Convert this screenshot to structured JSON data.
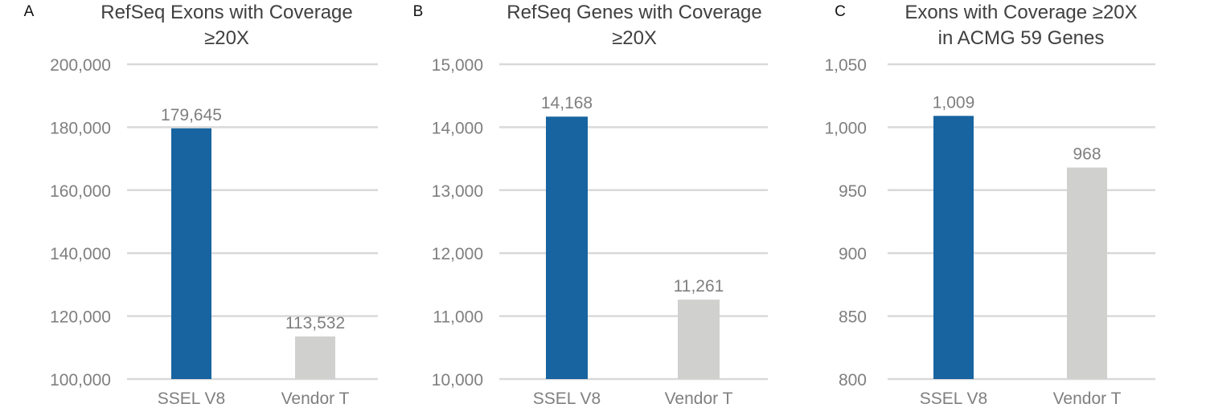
{
  "chart_data": [
    {
      "panel_letter": "A",
      "type": "bar",
      "title": [
        "RefSeq Exons with Coverage",
        "≥20X"
      ],
      "categories": [
        "SSEL V8",
        "Vendor T"
      ],
      "values": [
        179645,
        113532
      ],
      "value_labels": [
        "179,645",
        "113,532"
      ],
      "colors": [
        "#1864a0",
        "#d0d0ce"
      ],
      "ylim": [
        100000,
        200000
      ],
      "yticks": [
        100000,
        120000,
        140000,
        160000,
        180000,
        200000
      ],
      "ytick_labels": [
        "100,000",
        "120,000",
        "140,000",
        "160,000",
        "180,000",
        "200,000"
      ],
      "grid": true,
      "legend": "none"
    },
    {
      "panel_letter": "B",
      "type": "bar",
      "title": [
        "RefSeq Genes with Coverage",
        "≥20X"
      ],
      "categories": [
        "SSEL V8",
        "Vendor T"
      ],
      "values": [
        14168,
        11261
      ],
      "value_labels": [
        "14,168",
        "11,261"
      ],
      "colors": [
        "#1864a0",
        "#d0d0ce"
      ],
      "ylim": [
        10000,
        15000
      ],
      "yticks": [
        10000,
        11000,
        12000,
        13000,
        14000,
        15000
      ],
      "ytick_labels": [
        "10,000",
        "11,000",
        "12,000",
        "13,000",
        "14,000",
        "15,000"
      ],
      "grid": true,
      "legend": "none"
    },
    {
      "panel_letter": "C",
      "type": "bar",
      "title": [
        "Exons with Coverage ≥20X",
        "in ACMG 59 Genes"
      ],
      "categories": [
        "SSEL V8",
        "Vendor T"
      ],
      "values": [
        1009,
        968
      ],
      "value_labels": [
        "1,009",
        "968"
      ],
      "colors": [
        "#1864a0",
        "#d0d0ce"
      ],
      "ylim": [
        800,
        1050
      ],
      "yticks": [
        800,
        850,
        900,
        950,
        1000,
        1050
      ],
      "ytick_labels": [
        "800",
        "850",
        "900",
        "950",
        "1,000",
        "1,050"
      ],
      "grid": true,
      "legend": "none"
    }
  ]
}
